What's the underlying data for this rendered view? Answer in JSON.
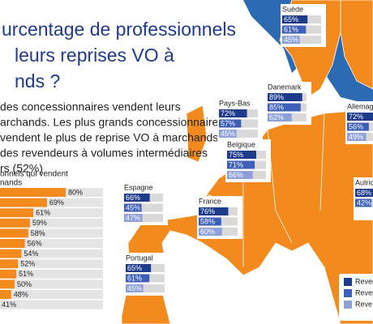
{
  "chart_data": [
    {
      "type": "bar",
      "title": [
        "urcentage de professionnels",
        "leurs reprises VO à",
        "nds ?"
      ],
      "subtitle": [
        "des concessionnaires vendent leurs",
        "archands. Les plus grands concessionnaires",
        "vendent le plus de reprise VO à marchands",
        "des revendeurs à volumes intermédiaires",
        "rs (52%)"
      ],
      "axis_label": [
        "onnels qui vendent",
        "nands"
      ],
      "categories": [
        null,
        null,
        null,
        null,
        null,
        null,
        null,
        null,
        null,
        null,
        null,
        null
      ],
      "values": [
        80,
        69,
        61,
        59,
        58,
        56,
        54,
        52,
        51,
        50,
        48,
        41
      ],
      "value_labels": [
        "80%",
        "69%",
        "61%",
        "59%",
        "58%",
        "56%",
        "54%",
        "52%",
        "51%",
        "50%",
        "48%",
        "41%"
      ],
      "color": "#f28a1e",
      "xlim": [
        0,
        100
      ]
    },
    {
      "type": "map",
      "categories": [
        "Suède",
        "Danemark",
        "Pays-Bas",
        "Allemagne",
        "Belgique",
        "Autriche",
        "Espagne",
        "France",
        "Portugal"
      ],
      "xlim": [
        0,
        100
      ],
      "series": [
        {
          "name": "Reven",
          "color": "#1e3a8a",
          "values": [
            65,
            89,
            72,
            72,
            75,
            68,
            66,
            76,
            65
          ],
          "value_labels": [
            "65%",
            "89%",
            "72%",
            "72%",
            "75%",
            "68%",
            "66%",
            "76%",
            "65%"
          ]
        },
        {
          "name": "Reven",
          "color": "#3d5fb8",
          "values": [
            61,
            85,
            57,
            56,
            71,
            42,
            45,
            58,
            61
          ],
          "value_labels": [
            "61%",
            "85%",
            "57%",
            "56%",
            "71%",
            "42%",
            "45%",
            "58%",
            "61%"
          ]
        },
        {
          "name": "Reve",
          "color": "#8ea0d8",
          "values": [
            45,
            62,
            45,
            49,
            66,
            null,
            47,
            60,
            45
          ],
          "value_labels": [
            "45%",
            "62%",
            "45%",
            "49%",
            "66%",
            null,
            "47%",
            "60%",
            "45%"
          ]
        }
      ]
    }
  ]
}
